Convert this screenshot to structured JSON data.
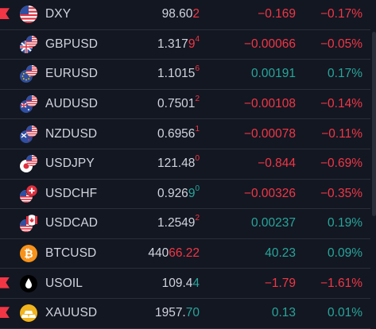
{
  "rows": [
    {
      "sym": "DXY",
      "flag": true,
      "icon": "us-flag-icon",
      "indent": false,
      "last_main": "98.60",
      "last_sup": "",
      "last_tail": "2",
      "tail_color": "neg",
      "chg": "−0.169",
      "pct": "−0.17%",
      "dir": "neg"
    },
    {
      "sym": "GBPUSD",
      "flag": false,
      "icon": "gb-us-flag-icon",
      "indent": true,
      "last_main": "1.317",
      "last_sup": "4",
      "last_tail": "9",
      "tail_color": "neg",
      "chg": "−0.00066",
      "pct": "−0.05%",
      "dir": "neg"
    },
    {
      "sym": "EURUSD",
      "flag": false,
      "icon": "eu-us-flag-icon",
      "indent": true,
      "last_main": "1.1015",
      "last_sup": "6",
      "last_tail": "",
      "tail_color": "neg",
      "chg": "0.00191",
      "pct": "0.17%",
      "dir": "pos"
    },
    {
      "sym": "AUDUSD",
      "flag": false,
      "icon": "au-us-flag-icon",
      "indent": true,
      "last_main": "0.7501",
      "last_sup": "2",
      "last_tail": "",
      "tail_color": "neg",
      "chg": "−0.00108",
      "pct": "−0.14%",
      "dir": "neg"
    },
    {
      "sym": "NZDUSD",
      "flag": false,
      "icon": "nz-us-flag-icon",
      "indent": true,
      "last_main": "0.6956",
      "last_sup": "1",
      "last_tail": "",
      "tail_color": "neg",
      "chg": "−0.00078",
      "pct": "−0.11%",
      "dir": "neg"
    },
    {
      "sym": "USDJPY",
      "flag": false,
      "icon": "us-jp-flag-icon",
      "indent": true,
      "last_main": "121.48",
      "last_sup": "0",
      "last_tail": "",
      "tail_color": "neg",
      "chg": "−0.844",
      "pct": "−0.69%",
      "dir": "neg"
    },
    {
      "sym": "USDCHF",
      "flag": false,
      "icon": "us-ch-flag-icon",
      "indent": true,
      "last_main": "0.926",
      "last_sup": "",
      "last_tail": "9",
      "tail_color": "pos",
      "last_sup2": "0",
      "chg": "−0.00326",
      "pct": "−0.35%",
      "dir": "neg"
    },
    {
      "sym": "USDCAD",
      "flag": false,
      "icon": "us-ca-flag-icon",
      "indent": true,
      "last_main": "1.2549",
      "last_sup": "2",
      "last_tail": "",
      "tail_color": "neg",
      "chg": "0.00237",
      "pct": "0.19%",
      "dir": "pos"
    },
    {
      "sym": "BTCUSD",
      "flag": false,
      "icon": "bitcoin-icon",
      "indent": false,
      "last_main": "440",
      "last_sup": "",
      "last_tail": "66.22",
      "tail_color": "neg",
      "chg": "40.23",
      "pct": "0.09%",
      "dir": "pos"
    },
    {
      "sym": "USOIL",
      "flag": true,
      "icon": "oil-drop-icon",
      "indent": false,
      "last_main": "109.4",
      "last_sup": "",
      "last_tail": "4",
      "tail_color": "pos",
      "chg": "−1.79",
      "pct": "−1.61%",
      "dir": "neg"
    },
    {
      "sym": "XAUUSD",
      "flag": true,
      "icon": "gold-bars-icon",
      "indent": false,
      "last_main": "1957.",
      "last_sup": "",
      "last_tail": "70",
      "tail_color": "pos",
      "chg": "0.13",
      "pct": "0.01%",
      "dir": "pos"
    }
  ],
  "colors": {
    "negative": "#f23645",
    "positive": "#26a69a",
    "background": "#131722"
  }
}
